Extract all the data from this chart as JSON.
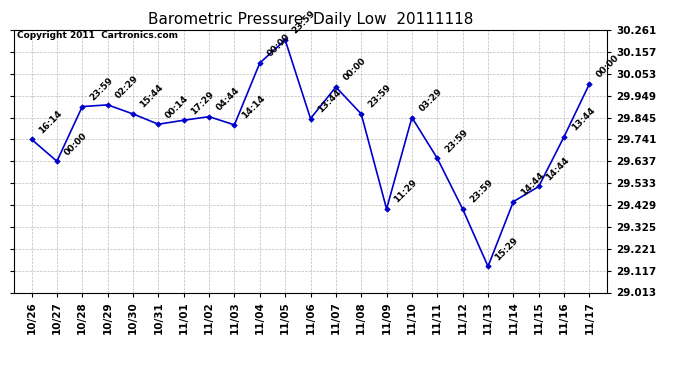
{
  "title": "Barometric Pressure  Daily Low  20111118",
  "copyright": "Copyright 2011  Cartronics.com",
  "line_color": "#0000cc",
  "marker_color": "#0000cc",
  "bg_color": "#ffffff",
  "grid_color": "#bbbbbb",
  "x_labels": [
    "10/26",
    "10/27",
    "10/28",
    "10/29",
    "10/30",
    "10/31",
    "11/01",
    "11/02",
    "11/03",
    "11/04",
    "11/05",
    "11/06",
    "11/07",
    "11/08",
    "11/09",
    "11/10",
    "11/11",
    "11/12",
    "11/13",
    "11/14",
    "11/15",
    "11/16",
    "11/17"
  ],
  "y_values": [
    29.741,
    29.637,
    29.897,
    29.905,
    29.862,
    29.813,
    29.832,
    29.849,
    29.81,
    30.104,
    30.214,
    29.84,
    29.99,
    29.862,
    29.41,
    29.845,
    29.651,
    29.41,
    29.137,
    29.445,
    29.517,
    29.754,
    30.005
  ],
  "annotations": [
    "16:14",
    "00:00",
    "23:59",
    "02:29",
    "15:44",
    "00:14",
    "17:29",
    "04:44",
    "14:14",
    "00:00",
    "23:59",
    "13:44",
    "00:00",
    "23:59",
    "11:29",
    "03:29",
    "23:59",
    "23:59",
    "15:29",
    "14:44",
    "14:44",
    "13:44",
    "00:00"
  ],
  "ylim_min": 29.013,
  "ylim_max": 30.261,
  "yticks": [
    29.013,
    29.117,
    29.221,
    29.325,
    29.429,
    29.533,
    29.637,
    29.741,
    29.845,
    29.949,
    30.053,
    30.157,
    30.261
  ],
  "title_fontsize": 11,
  "tick_fontsize": 7.5,
  "annotation_fontsize": 6.5,
  "copyright_fontsize": 6.5
}
